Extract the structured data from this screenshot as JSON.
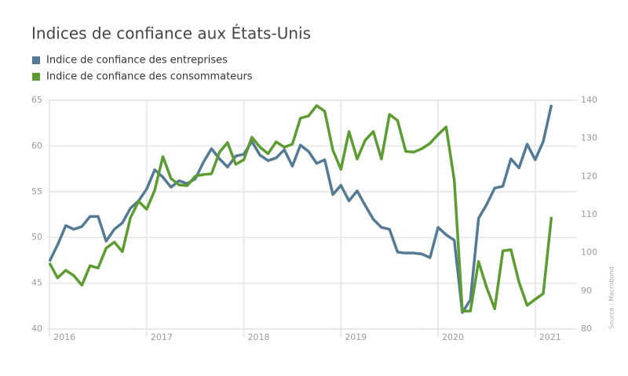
{
  "chart_data": {
    "type": "line",
    "title": "Indices de confiance aux États-Unis",
    "source": "Source : Macrobond",
    "x": [
      2016,
      2016.083,
      2016.167,
      2016.25,
      2016.333,
      2016.417,
      2016.5,
      2016.583,
      2016.667,
      2016.75,
      2016.833,
      2016.917,
      2017,
      2017.083,
      2017.167,
      2017.25,
      2017.333,
      2017.417,
      2017.5,
      2017.583,
      2017.667,
      2017.75,
      2017.833,
      2017.917,
      2018,
      2018.083,
      2018.167,
      2018.25,
      2018.333,
      2018.417,
      2018.5,
      2018.583,
      2018.667,
      2018.75,
      2018.833,
      2018.917,
      2019,
      2019.083,
      2019.167,
      2019.25,
      2019.333,
      2019.417,
      2019.5,
      2019.583,
      2019.667,
      2019.75,
      2019.833,
      2019.917,
      2020,
      2020.083,
      2020.167,
      2020.25,
      2020.333,
      2020.417,
      2020.5,
      2020.583,
      2020.667,
      2020.75,
      2020.833,
      2020.917,
      2021,
      2021.083,
      2021.167
    ],
    "series": [
      {
        "name": "Indice de confiance des entreprises",
        "color": "#557a95",
        "axis": "y",
        "values": [
          47.4,
          49.2,
          51.3,
          50.9,
          51.2,
          52.3,
          52.3,
          49.6,
          50.9,
          51.6,
          53.2,
          54.0,
          55.3,
          57.4,
          56.6,
          55.5,
          56.2,
          55.9,
          56.4,
          58.2,
          59.7,
          58.6,
          57.7,
          58.9,
          59.1,
          60.5,
          59.0,
          58.4,
          58.7,
          59.6,
          57.8,
          60.1,
          59.4,
          58.1,
          58.5,
          54.7,
          55.7,
          54.0,
          55.1,
          53.5,
          52.0,
          51.1,
          50.9,
          48.4,
          48.3,
          48.3,
          48.2,
          47.8,
          51.1,
          50.3,
          49.7,
          41.8,
          43.2,
          52.1,
          53.6,
          55.4,
          55.6,
          58.6,
          57.6,
          60.2,
          58.5,
          60.5,
          64.5
        ]
      },
      {
        "name": "Indice de confiance des consommateurs",
        "color": "#5c9c32",
        "axis": "y2",
        "values": [
          97.3,
          93.4,
          95.4,
          94.0,
          91.5,
          96.6,
          96.0,
          101.2,
          102.8,
          100.3,
          109.2,
          113.5,
          111.4,
          116.4,
          125.2,
          119.5,
          117.8,
          117.6,
          120.1,
          120.5,
          120.7,
          126.4,
          128.9,
          123.2,
          124.4,
          130.3,
          127.7,
          126.0,
          129.1,
          127.7,
          128.5,
          135.3,
          135.9,
          138.6,
          137.1,
          126.9,
          121.9,
          131.8,
          124.6,
          129.5,
          131.8,
          124.6,
          136.3,
          134.7,
          126.6,
          126.4,
          127.3,
          128.7,
          131.0,
          133.0,
          119.0,
          84.7,
          84.7,
          97.7,
          90.9,
          85.3,
          100.5,
          100.8,
          92.3,
          86.2,
          87.8,
          89.3,
          109.4
        ]
      }
    ],
    "xlim": [
      2015.975,
      2021.43
    ],
    "xticks": [
      2016,
      2017,
      2018,
      2019,
      2020,
      2021
    ],
    "ylim": [
      40,
      65
    ],
    "yticks": [
      40,
      45,
      50,
      55,
      60,
      65
    ],
    "y2lim": [
      80,
      140
    ],
    "y2ticks": [
      80,
      90,
      100,
      110,
      120,
      130,
      140
    ],
    "grid": true
  }
}
